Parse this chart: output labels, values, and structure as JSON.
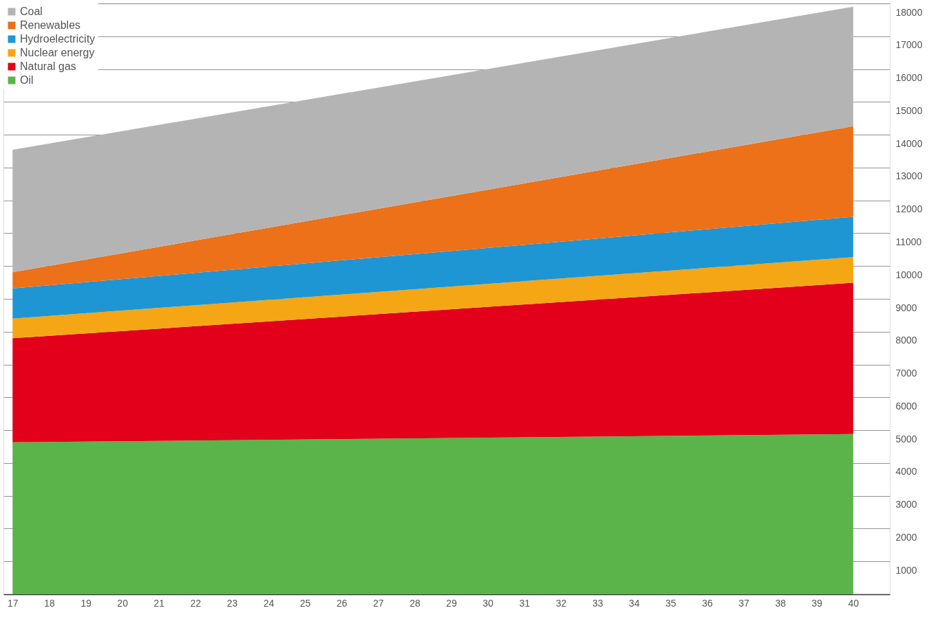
{
  "chart_data": {
    "type": "area",
    "stacked": true,
    "x": [
      17,
      40
    ],
    "series": [
      {
        "name": "Oil",
        "color": "#5ab44a",
        "values": [
          4630,
          4880
        ]
      },
      {
        "name": "Natural gas",
        "color": "#e2001a",
        "values": [
          3170,
          4610
        ]
      },
      {
        "name": "Nuclear energy",
        "color": "#f5a614",
        "values": [
          600,
          780
        ]
      },
      {
        "name": "Hydroelectricity",
        "color": "#1e96d4",
        "values": [
          920,
          1230
        ]
      },
      {
        "name": "Renewables",
        "color": "#ec7119",
        "values": [
          490,
          2760
        ]
      },
      {
        "name": "Coal",
        "color": "#b4b4b5",
        "values": [
          3730,
          3640
        ]
      }
    ],
    "xlim": [
      16.75,
      41
    ],
    "xticks": [
      17,
      18,
      19,
      20,
      21,
      22,
      23,
      24,
      25,
      26,
      27,
      28,
      29,
      30,
      31,
      32,
      33,
      34,
      35,
      36,
      37,
      38,
      39,
      40
    ],
    "ylim": [
      0,
      18000
    ],
    "yticks": [
      1000,
      2000,
      3000,
      4000,
      5000,
      6000,
      7000,
      8000,
      9000,
      10000,
      11000,
      12000,
      13000,
      14000,
      15000,
      16000,
      17000,
      18000
    ],
    "grid": "y",
    "legend": "top left"
  }
}
